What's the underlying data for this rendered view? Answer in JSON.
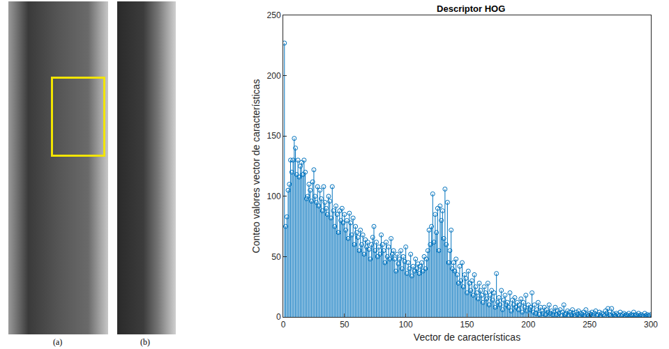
{
  "panels": [
    {
      "label": "(a)"
    },
    {
      "label": "(b)"
    }
  ],
  "chart_data": {
    "type": "stem",
    "title": "Descriptor HOG",
    "x_label": "Vector de características",
    "y_label": "Conteo valores vector de características",
    "color": "#0072bd",
    "marker": "circle-open",
    "grid": false,
    "xlim": [
      0,
      300
    ],
    "xticks": [
      0,
      50,
      100,
      150,
      200,
      250,
      300
    ],
    "ylim": [
      0,
      250
    ],
    "yticks": [
      0,
      50,
      100,
      150,
      200,
      250
    ],
    "x": [
      1,
      2,
      3,
      4,
      5,
      6,
      7,
      8,
      9,
      10,
      11,
      12,
      13,
      14,
      15,
      16,
      17,
      18,
      19,
      20,
      21,
      22,
      23,
      24,
      25,
      26,
      27,
      28,
      29,
      30,
      31,
      32,
      33,
      34,
      35,
      36,
      37,
      38,
      39,
      40,
      41,
      42,
      43,
      44,
      45,
      46,
      47,
      48,
      49,
      50,
      51,
      52,
      53,
      54,
      55,
      56,
      57,
      58,
      59,
      60,
      61,
      62,
      63,
      64,
      65,
      66,
      67,
      68,
      69,
      70,
      71,
      72,
      73,
      74,
      75,
      76,
      77,
      78,
      79,
      80,
      81,
      82,
      83,
      84,
      85,
      86,
      87,
      88,
      89,
      90,
      91,
      92,
      93,
      94,
      95,
      96,
      97,
      98,
      99,
      100,
      101,
      102,
      103,
      104,
      105,
      106,
      107,
      108,
      109,
      110,
      111,
      112,
      113,
      114,
      115,
      116,
      117,
      118,
      119,
      120,
      121,
      122,
      123,
      124,
      125,
      126,
      127,
      128,
      129,
      130,
      131,
      132,
      133,
      134,
      135,
      136,
      137,
      138,
      139,
      140,
      141,
      142,
      143,
      144,
      145,
      146,
      147,
      148,
      149,
      150,
      151,
      152,
      153,
      154,
      155,
      156,
      157,
      158,
      159,
      160,
      161,
      162,
      163,
      164,
      165,
      166,
      167,
      168,
      169,
      170,
      171,
      172,
      173,
      174,
      175,
      176,
      177,
      178,
      179,
      180,
      181,
      182,
      183,
      184,
      185,
      186,
      187,
      188,
      189,
      190,
      191,
      192,
      193,
      194,
      195,
      196,
      197,
      198,
      199,
      200,
      201,
      202,
      203,
      204,
      205,
      206,
      207,
      208,
      209,
      210,
      211,
      212,
      213,
      214,
      215,
      216,
      217,
      218,
      219,
      220,
      221,
      222,
      223,
      224,
      225,
      226,
      227,
      228,
      229,
      230,
      231,
      232,
      233,
      234,
      235,
      236,
      237,
      238,
      239,
      240,
      241,
      242,
      243,
      244,
      245,
      246,
      247,
      248,
      249,
      250,
      251,
      252,
      253,
      254,
      255,
      256,
      257,
      258,
      259,
      260,
      261,
      262,
      263,
      264,
      265,
      266,
      267,
      268,
      269,
      270,
      271,
      272,
      273,
      274,
      275,
      276,
      277,
      278,
      279,
      280,
      281,
      282,
      283,
      284,
      285,
      286,
      287,
      288,
      289,
      290,
      291,
      292,
      293,
      294,
      295,
      296,
      297,
      298,
      299,
      300
    ],
    "values": [
      227,
      75,
      83,
      105,
      110,
      130,
      120,
      130,
      148,
      140,
      118,
      130,
      116,
      125,
      128,
      118,
      130,
      120,
      98,
      100,
      110,
      105,
      96,
      112,
      122,
      100,
      95,
      108,
      92,
      105,
      98,
      88,
      108,
      95,
      90,
      85,
      100,
      96,
      82,
      108,
      88,
      75,
      92,
      85,
      70,
      88,
      80,
      90,
      78,
      85,
      72,
      80,
      65,
      86,
      78,
      68,
      82,
      60,
      75,
      70,
      66,
      55,
      72,
      60,
      68,
      52,
      64,
      58,
      62,
      56,
      48,
      60,
      66,
      75,
      55,
      62,
      50,
      58,
      52,
      68,
      60,
      55,
      45,
      62,
      50,
      58,
      48,
      65,
      52,
      55,
      48,
      38,
      52,
      44,
      48,
      55,
      40,
      50,
      46,
      58,
      36,
      45,
      40,
      52,
      34,
      42,
      38,
      48,
      40,
      44,
      36,
      42,
      45,
      38,
      50,
      40,
      48,
      55,
      72,
      60,
      75,
      102,
      62,
      85,
      70,
      90,
      55,
      92,
      80,
      88,
      65,
      106,
      60,
      95,
      45,
      55,
      72,
      40,
      45,
      38,
      48,
      35,
      28,
      42,
      30,
      45,
      25,
      35,
      32,
      20,
      38,
      28,
      22,
      30,
      18,
      35,
      25,
      20,
      15,
      28,
      22,
      18,
      12,
      25,
      20,
      15,
      28,
      10,
      18,
      22,
      14,
      20,
      8,
      36,
      12,
      16,
      10,
      22,
      6,
      14,
      18,
      10,
      12,
      8,
      20,
      5,
      14,
      10,
      16,
      8,
      12,
      6,
      10,
      15,
      4,
      12,
      8,
      18,
      5,
      10,
      6,
      8,
      20,
      4,
      10,
      3,
      6,
      12,
      2,
      8,
      5,
      3,
      8,
      2,
      6,
      4,
      10,
      3,
      5,
      2,
      4,
      8,
      2,
      5,
      3,
      6,
      1,
      4,
      10,
      2,
      3,
      5,
      1,
      4,
      2,
      6,
      3,
      1,
      4,
      2,
      5,
      1,
      3,
      2,
      4,
      1,
      6,
      2,
      1,
      3,
      2,
      4,
      1,
      3,
      5,
      1,
      2,
      4,
      1,
      3,
      2,
      1,
      5,
      3,
      7,
      2,
      1,
      7,
      3,
      2,
      1,
      3,
      2,
      1,
      4,
      1,
      2,
      3,
      1,
      2,
      1,
      3,
      1,
      2,
      1,
      4,
      1,
      2,
      1,
      3,
      1,
      2,
      1,
      1,
      3,
      1,
      2,
      1,
      1,
      2
    ]
  }
}
